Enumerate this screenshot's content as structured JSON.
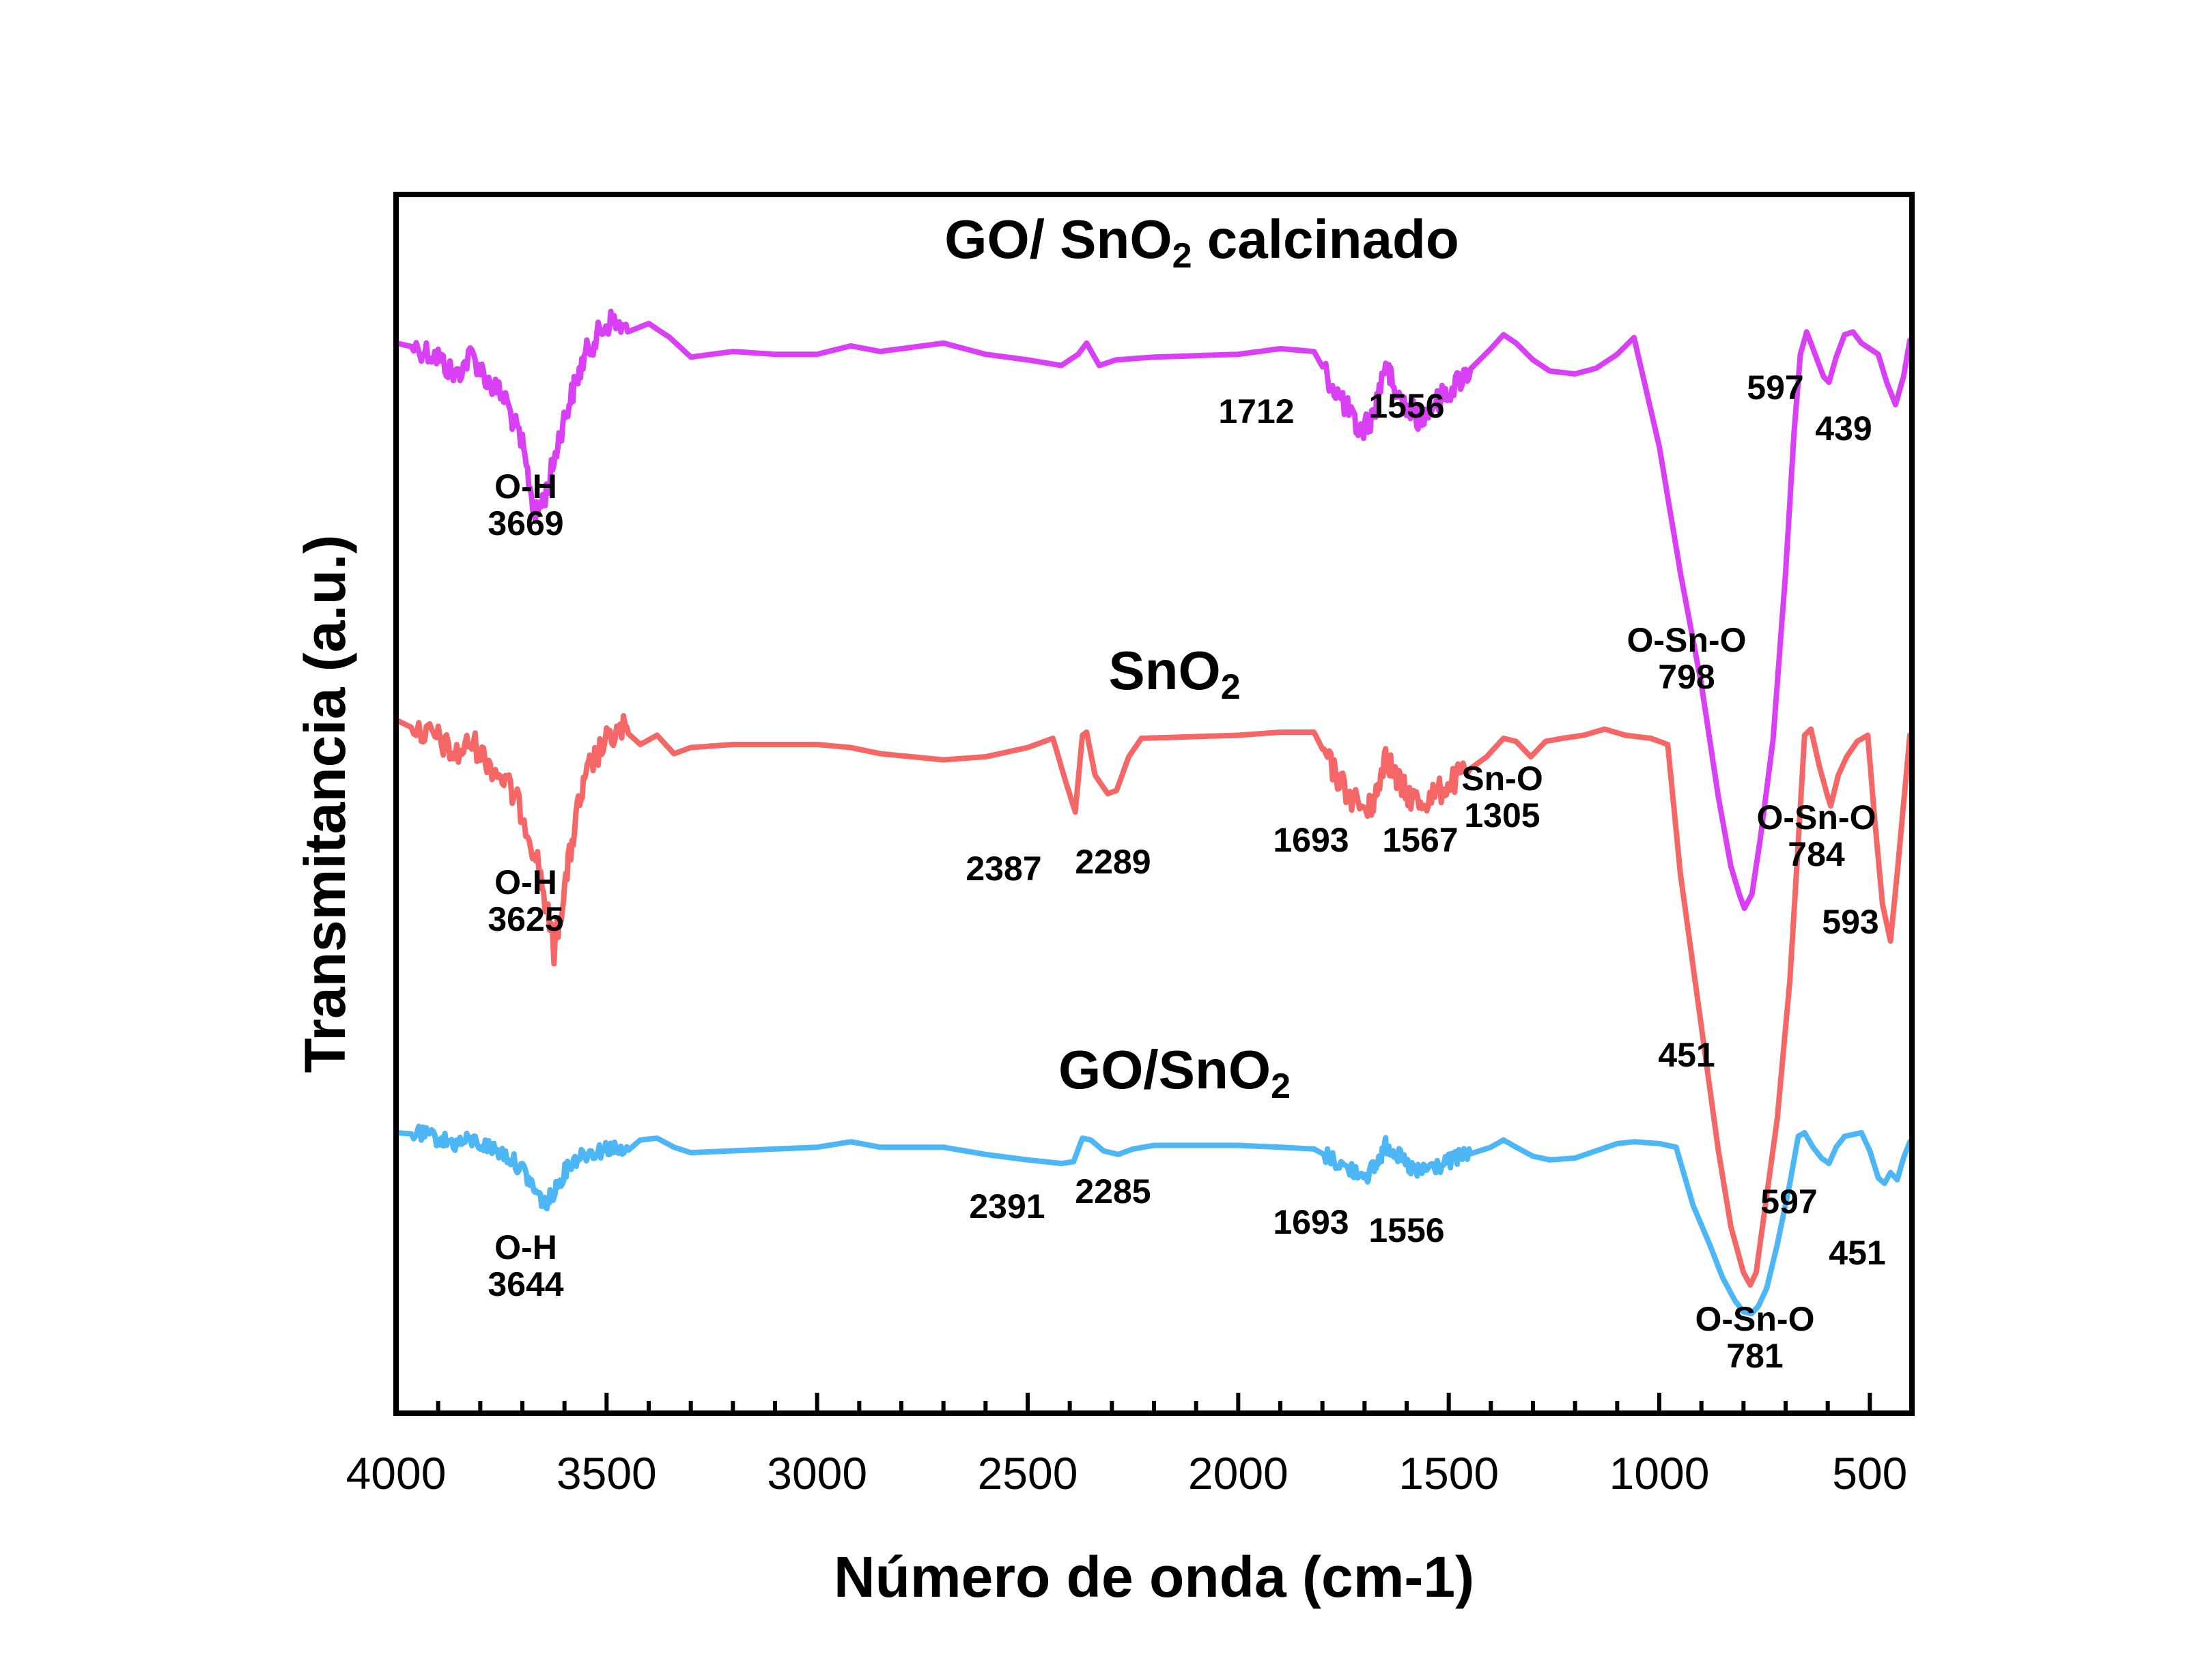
{
  "chart_data": {
    "type": "line",
    "xlabel": "Número de onda (cm-1)",
    "ylabel": "Transmitancia (a.u.)",
    "x_reversed": true,
    "xlim": [
      4000,
      400
    ],
    "x_ticks": [
      4000,
      3500,
      3000,
      2500,
      2000,
      1500,
      1000,
      500
    ],
    "x_tick_labels": [
      "4000",
      "3500",
      "3000",
      "2500",
      "2000",
      "1500",
      "1000",
      "500"
    ],
    "y_ticks_shown": false,
    "grid": false,
    "series": [
      {
        "name": "GO/ SnO2 calcinado",
        "label_parts": {
          "a": "GO/ SnO",
          "sub": "2",
          "b": " calcinado"
        },
        "color": "#d93ff5",
        "points": [
          [
            4000,
            0.08
          ],
          [
            3940,
            0.1
          ],
          [
            3900,
            0.13
          ],
          [
            3860,
            0.2
          ],
          [
            3820,
            0.12
          ],
          [
            3780,
            0.22
          ],
          [
            3740,
            0.28
          ],
          [
            3700,
            0.45
          ],
          [
            3669,
            0.7
          ],
          [
            3640,
            0.6
          ],
          [
            3610,
            0.4
          ],
          [
            3580,
            0.25
          ],
          [
            3550,
            0.12
          ],
          [
            3520,
            0.05
          ],
          [
            3490,
            0.0
          ],
          [
            3450,
            0.04
          ],
          [
            3400,
            0.01
          ],
          [
            3350,
            0.06
          ],
          [
            3300,
            0.13
          ],
          [
            3200,
            0.11
          ],
          [
            3100,
            0.12
          ],
          [
            3000,
            0.12
          ],
          [
            2920,
            0.09
          ],
          [
            2850,
            0.11
          ],
          [
            2700,
            0.08
          ],
          [
            2600,
            0.12
          ],
          [
            2500,
            0.14
          ],
          [
            2420,
            0.16
          ],
          [
            2380,
            0.12
          ],
          [
            2360,
            0.08
          ],
          [
            2330,
            0.16
          ],
          [
            2290,
            0.14
          ],
          [
            2200,
            0.13
          ],
          [
            2000,
            0.12
          ],
          [
            1900,
            0.1
          ],
          [
            1820,
            0.11
          ],
          [
            1780,
            0.22
          ],
          [
            1740,
            0.32
          ],
          [
            1712,
            0.4
          ],
          [
            1680,
            0.34
          ],
          [
            1650,
            0.15
          ],
          [
            1630,
            0.25
          ],
          [
            1600,
            0.3
          ],
          [
            1570,
            0.35
          ],
          [
            1556,
            0.32
          ],
          [
            1520,
            0.28
          ],
          [
            1480,
            0.22
          ],
          [
            1440,
            0.16
          ],
          [
            1400,
            0.1
          ],
          [
            1370,
            0.05
          ],
          [
            1340,
            0.08
          ],
          [
            1300,
            0.14
          ],
          [
            1260,
            0.18
          ],
          [
            1200,
            0.19
          ],
          [
            1150,
            0.17
          ],
          [
            1100,
            0.12
          ],
          [
            1060,
            0.06
          ],
          [
            1000,
            0.45
          ],
          [
            950,
            0.9
          ],
          [
            900,
            1.3
          ],
          [
            860,
            1.7
          ],
          [
            830,
            1.95
          ],
          [
            810,
            2.05
          ],
          [
            798,
            2.1
          ],
          [
            780,
            2.05
          ],
          [
            760,
            1.85
          ],
          [
            730,
            1.5
          ],
          [
            700,
            0.9
          ],
          [
            680,
            0.4
          ],
          [
            665,
            0.12
          ],
          [
            650,
            0.04
          ],
          [
            630,
            0.12
          ],
          [
            610,
            0.2
          ],
          [
            597,
            0.22
          ],
          [
            580,
            0.13
          ],
          [
            560,
            0.05
          ],
          [
            540,
            0.04
          ],
          [
            520,
            0.08
          ],
          [
            500,
            0.1
          ],
          [
            480,
            0.12
          ],
          [
            460,
            0.22
          ],
          [
            439,
            0.3
          ],
          [
            420,
            0.2
          ],
          [
            405,
            0.07
          ]
        ]
      },
      {
        "name": "SnO2",
        "label_parts": {
          "a": "SnO",
          "sub": "2",
          "b": ""
        },
        "color": "#f56767",
        "points": [
          [
            4000,
            0.0
          ],
          [
            3940,
            0.04
          ],
          [
            3900,
            0.06
          ],
          [
            3860,
            0.12
          ],
          [
            3820,
            0.07
          ],
          [
            3780,
            0.14
          ],
          [
            3740,
            0.2
          ],
          [
            3700,
            0.3
          ],
          [
            3660,
            0.48
          ],
          [
            3625,
            0.75
          ],
          [
            3600,
            0.55
          ],
          [
            3570,
            0.3
          ],
          [
            3540,
            0.15
          ],
          [
            3500,
            0.07
          ],
          [
            3460,
            0.03
          ],
          [
            3420,
            0.08
          ],
          [
            3380,
            0.05
          ],
          [
            3340,
            0.11
          ],
          [
            3300,
            0.09
          ],
          [
            3200,
            0.08
          ],
          [
            3100,
            0.08
          ],
          [
            3000,
            0.08
          ],
          [
            2920,
            0.09
          ],
          [
            2850,
            0.11
          ],
          [
            2700,
            0.13
          ],
          [
            2600,
            0.12
          ],
          [
            2500,
            0.09
          ],
          [
            2440,
            0.06
          ],
          [
            2410,
            0.2
          ],
          [
            2387,
            0.3
          ],
          [
            2370,
            0.05
          ],
          [
            2360,
            0.04
          ],
          [
            2340,
            0.18
          ],
          [
            2310,
            0.24
          ],
          [
            2289,
            0.23
          ],
          [
            2260,
            0.12
          ],
          [
            2230,
            0.06
          ],
          [
            2000,
            0.05
          ],
          [
            1900,
            0.04
          ],
          [
            1820,
            0.04
          ],
          [
            1780,
            0.15
          ],
          [
            1740,
            0.24
          ],
          [
            1693,
            0.3
          ],
          [
            1670,
            0.24
          ],
          [
            1650,
            0.1
          ],
          [
            1630,
            0.18
          ],
          [
            1600,
            0.24
          ],
          [
            1567,
            0.27
          ],
          [
            1530,
            0.24
          ],
          [
            1490,
            0.2
          ],
          [
            1450,
            0.16
          ],
          [
            1410,
            0.12
          ],
          [
            1370,
            0.06
          ],
          [
            1340,
            0.07
          ],
          [
            1305,
            0.12
          ],
          [
            1270,
            0.07
          ],
          [
            1230,
            0.06
          ],
          [
            1180,
            0.05
          ],
          [
            1130,
            0.03
          ],
          [
            1080,
            0.05
          ],
          [
            1020,
            0.06
          ],
          [
            980,
            0.08
          ],
          [
            950,
            0.5
          ],
          [
            900,
            1.0
          ],
          [
            860,
            1.4
          ],
          [
            830,
            1.65
          ],
          [
            800,
            1.8
          ],
          [
            784,
            1.84
          ],
          [
            770,
            1.8
          ],
          [
            750,
            1.6
          ],
          [
            720,
            1.3
          ],
          [
            690,
            0.85
          ],
          [
            670,
            0.4
          ],
          [
            655,
            0.05
          ],
          [
            640,
            0.03
          ],
          [
            620,
            0.15
          ],
          [
            600,
            0.25
          ],
          [
            593,
            0.28
          ],
          [
            575,
            0.18
          ],
          [
            555,
            0.12
          ],
          [
            530,
            0.07
          ],
          [
            505,
            0.05
          ],
          [
            490,
            0.3
          ],
          [
            470,
            0.6
          ],
          [
            451,
            0.72
          ],
          [
            435,
            0.5
          ],
          [
            415,
            0.2
          ],
          [
            405,
            0.05
          ]
        ]
      },
      {
        "name": "GO/SnO2",
        "label_parts": {
          "a": "GO/SnO",
          "sub": "2",
          "b": ""
        },
        "color": "#4db6f5",
        "points": [
          [
            4000,
            0.0
          ],
          [
            3940,
            0.01
          ],
          [
            3900,
            0.03
          ],
          [
            3860,
            0.06
          ],
          [
            3820,
            0.04
          ],
          [
            3780,
            0.08
          ],
          [
            3740,
            0.12
          ],
          [
            3700,
            0.2
          ],
          [
            3670,
            0.32
          ],
          [
            3644,
            0.4
          ],
          [
            3620,
            0.3
          ],
          [
            3590,
            0.18
          ],
          [
            3560,
            0.12
          ],
          [
            3520,
            0.1
          ],
          [
            3490,
            0.08
          ],
          [
            3460,
            0.12
          ],
          [
            3420,
            0.04
          ],
          [
            3380,
            0.03
          ],
          [
            3340,
            0.08
          ],
          [
            3300,
            0.11
          ],
          [
            3200,
            0.1
          ],
          [
            3100,
            0.09
          ],
          [
            3000,
            0.08
          ],
          [
            2920,
            0.05
          ],
          [
            2850,
            0.08
          ],
          [
            2700,
            0.08
          ],
          [
            2600,
            0.12
          ],
          [
            2500,
            0.15
          ],
          [
            2420,
            0.17
          ],
          [
            2391,
            0.16
          ],
          [
            2370,
            0.03
          ],
          [
            2350,
            0.04
          ],
          [
            2320,
            0.1
          ],
          [
            2285,
            0.12
          ],
          [
            2250,
            0.09
          ],
          [
            2200,
            0.07
          ],
          [
            2000,
            0.07
          ],
          [
            1900,
            0.08
          ],
          [
            1820,
            0.09
          ],
          [
            1780,
            0.14
          ],
          [
            1740,
            0.2
          ],
          [
            1693,
            0.23
          ],
          [
            1670,
            0.17
          ],
          [
            1650,
            0.07
          ],
          [
            1630,
            0.1
          ],
          [
            1600,
            0.18
          ],
          [
            1575,
            0.22
          ],
          [
            1556,
            0.2
          ],
          [
            1520,
            0.18
          ],
          [
            1480,
            0.14
          ],
          [
            1440,
            0.11
          ],
          [
            1400,
            0.08
          ],
          [
            1370,
            0.04
          ],
          [
            1340,
            0.08
          ],
          [
            1300,
            0.13
          ],
          [
            1260,
            0.15
          ],
          [
            1200,
            0.14
          ],
          [
            1150,
            0.1
          ],
          [
            1100,
            0.06
          ],
          [
            1060,
            0.05
          ],
          [
            1000,
            0.06
          ],
          [
            960,
            0.08
          ],
          [
            920,
            0.4
          ],
          [
            880,
            0.62
          ],
          [
            850,
            0.8
          ],
          [
            820,
            0.93
          ],
          [
            800,
            0.99
          ],
          [
            781,
            1.0
          ],
          [
            765,
            0.96
          ],
          [
            745,
            0.86
          ],
          [
            720,
            0.62
          ],
          [
            690,
            0.28
          ],
          [
            670,
            0.02
          ],
          [
            655,
            0.0
          ],
          [
            635,
            0.08
          ],
          [
            615,
            0.14
          ],
          [
            597,
            0.17
          ],
          [
            580,
            0.08
          ],
          [
            560,
            0.02
          ],
          [
            540,
            0.01
          ],
          [
            520,
            0.0
          ],
          [
            500,
            0.1
          ],
          [
            480,
            0.25
          ],
          [
            465,
            0.28
          ],
          [
            451,
            0.22
          ],
          [
            435,
            0.26
          ],
          [
            420,
            0.14
          ],
          [
            405,
            0.05
          ]
        ]
      }
    ],
    "annotations": [
      {
        "series": "GO/ SnO2 calcinado",
        "lines": [
          "O-H",
          "3669"
        ]
      },
      {
        "series": "GO/ SnO2 calcinado",
        "lines": [
          "1712"
        ]
      },
      {
        "series": "GO/ SnO2 calcinado",
        "lines": [
          "1556"
        ]
      },
      {
        "series": "GO/ SnO2 calcinado",
        "lines": [
          "O-Sn-O",
          "798"
        ]
      },
      {
        "series": "GO/ SnO2 calcinado",
        "lines": [
          "597"
        ]
      },
      {
        "series": "GO/ SnO2 calcinado",
        "lines": [
          "439"
        ]
      },
      {
        "series": "SnO2",
        "lines": [
          "O-H",
          "3625"
        ]
      },
      {
        "series": "SnO2",
        "lines": [
          "2387"
        ]
      },
      {
        "series": "SnO2",
        "lines": [
          "2289"
        ]
      },
      {
        "series": "SnO2",
        "lines": [
          "1693"
        ]
      },
      {
        "series": "SnO2",
        "lines": [
          "1567"
        ]
      },
      {
        "series": "SnO2",
        "lines": [
          "Sn-O",
          "1305"
        ]
      },
      {
        "series": "SnO2",
        "lines": [
          "O-Sn-O",
          "784"
        ]
      },
      {
        "series": "SnO2",
        "lines": [
          "593"
        ]
      },
      {
        "series": "SnO2",
        "lines": [
          "451"
        ]
      },
      {
        "series": "GO/SnO2",
        "lines": [
          "O-H",
          "3644"
        ]
      },
      {
        "series": "GO/SnO2",
        "lines": [
          "2391"
        ]
      },
      {
        "series": "GO/SnO2",
        "lines": [
          "2285"
        ]
      },
      {
        "series": "GO/SnO2",
        "lines": [
          "1693"
        ]
      },
      {
        "series": "GO/SnO2",
        "lines": [
          "1556"
        ]
      },
      {
        "series": "GO/SnO2",
        "lines": [
          "O-Sn-O",
          "781"
        ]
      },
      {
        "series": "GO/SnO2",
        "lines": [
          "597"
        ]
      },
      {
        "series": "GO/SnO2",
        "lines": [
          "451"
        ]
      }
    ]
  }
}
